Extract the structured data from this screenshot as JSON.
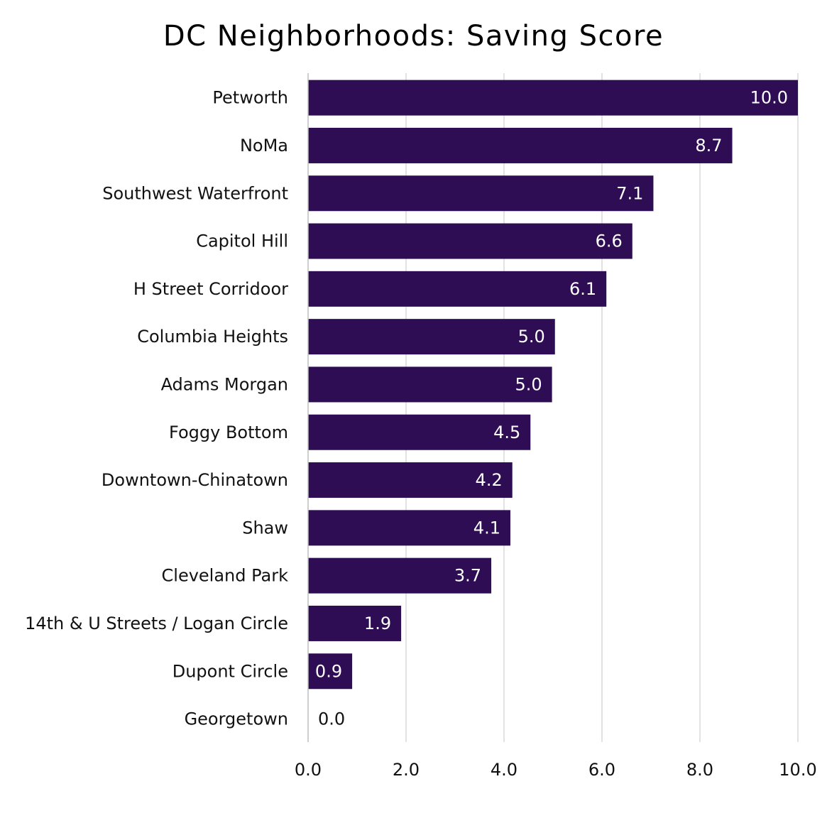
{
  "chart_data": {
    "type": "bar",
    "orientation": "horizontal",
    "title": "DC Neighborhoods: Saving Score",
    "xlabel": "",
    "ylabel": "",
    "categories": [
      "Petworth",
      "NoMa",
      "Southwest Waterfront",
      "Capitol Hill",
      "H Street Corridoor",
      "Columbia Heights",
      "Adams Morgan",
      "Foggy Bottom",
      "Downtown-Chinatown",
      "Shaw",
      "Cleveland Park",
      "14th & U Streets / Logan Circle",
      "Dupont Circle",
      "Georgetown"
    ],
    "values": [
      10.0,
      8.66,
      7.05,
      6.62,
      6.09,
      5.04,
      4.98,
      4.54,
      4.17,
      4.13,
      3.74,
      1.9,
      0.9,
      0.0
    ],
    "value_labels": [
      "10.0",
      "8.7",
      "7.1",
      "6.6",
      "6.1",
      "5.0",
      "5.0",
      "4.5",
      "4.2",
      "4.1",
      "3.7",
      "1.9",
      "0.9",
      "0.0"
    ],
    "xlim": [
      0,
      10
    ],
    "xticks": [
      0,
      2,
      4,
      6,
      8,
      10
    ],
    "xtick_labels": [
      "0.0",
      "2.0",
      "4.0",
      "6.0",
      "8.0",
      "10.0"
    ],
    "grid": true,
    "legend": "none",
    "colors": {
      "bar": "#2e0d54",
      "label_on_bar": "#ffffff",
      "label_outside": "#111111",
      "grid": "#d9d9d9"
    }
  }
}
